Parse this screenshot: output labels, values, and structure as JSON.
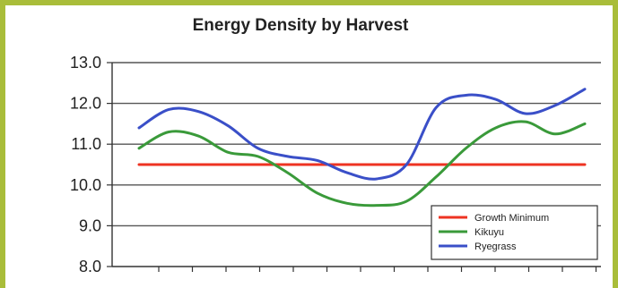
{
  "chart_data": {
    "type": "line",
    "title": "Energy Density by Harvest",
    "xlabel": "",
    "ylabel": "",
    "ylim": [
      8.0,
      13.0
    ],
    "yticks": [
      "8.0",
      "9.0",
      "10.0",
      "11.0",
      "12.0",
      "13.0"
    ],
    "x_count": 16,
    "grid": true,
    "legend_position": "bottom-right",
    "series": [
      {
        "name": "Growth Minimum",
        "color": "#ee3322",
        "values": [
          10.5,
          10.5,
          10.5,
          10.5,
          10.5,
          10.5,
          10.5,
          10.5,
          10.5,
          10.5,
          10.5,
          10.5,
          10.5,
          10.5,
          10.5,
          10.5
        ]
      },
      {
        "name": "Kikuyu",
        "color": "#3a9a3a",
        "values": [
          10.9,
          11.3,
          11.2,
          10.8,
          10.7,
          10.3,
          9.8,
          9.55,
          9.5,
          9.6,
          10.2,
          10.9,
          11.4,
          11.55,
          11.25,
          11.5
        ]
      },
      {
        "name": "Ryegrass",
        "color": "#3a4fc8",
        "values": [
          11.4,
          11.85,
          11.8,
          11.45,
          10.9,
          10.7,
          10.6,
          10.3,
          10.15,
          10.5,
          11.9,
          12.2,
          12.1,
          11.75,
          11.95,
          12.35
        ]
      }
    ]
  }
}
